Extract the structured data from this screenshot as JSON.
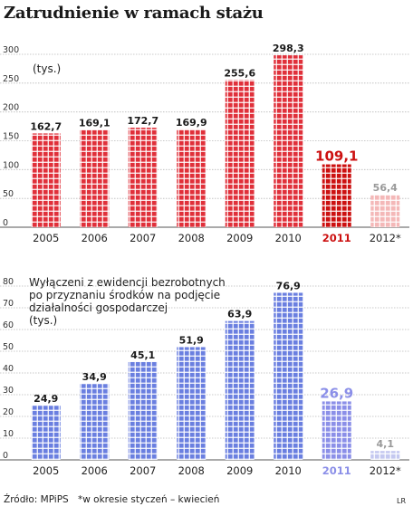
{
  "title": "Zatrudnienie w ramach stażu",
  "source": "Źródło: MPiPS",
  "footnote": "*w okresie styczeń – kwiecień",
  "credit": "LR",
  "chart_data": [
    {
      "type": "bar",
      "annotation_lines": [
        "(tys.)"
      ],
      "categories": [
        "2005",
        "2006",
        "2007",
        "2008",
        "2009",
        "2010",
        "2011",
        "2012*"
      ],
      "values": [
        162.7,
        169.1,
        172.7,
        169.9,
        255.6,
        298.3,
        109.1,
        56.4
      ],
      "labels": [
        "162,7",
        "169,1",
        "172,7",
        "169,9",
        "255,6",
        "298,3",
        "109,1",
        "56,4"
      ],
      "yticks": [
        "0",
        "50",
        "100",
        "150",
        "200",
        "250",
        "300"
      ],
      "ylim": [
        0,
        300
      ],
      "colors": {
        "default": "#e0303a",
        "highlight": "#cc1111",
        "partial": "#f4b8b8"
      },
      "highlight_index": 6,
      "partial_index": 7,
      "grid": true
    },
    {
      "type": "bar",
      "annotation_lines": [
        "Wyłączeni z ewidencji bezrobotnych",
        "po przyznaniu środków na podjęcie",
        "działalności gospodarczej",
        "(tys.)"
      ],
      "categories": [
        "2005",
        "2006",
        "2007",
        "2008",
        "2009",
        "2010",
        "2011",
        "2012*"
      ],
      "values": [
        24.9,
        34.9,
        45.1,
        51.9,
        63.9,
        76.9,
        26.9,
        4.1
      ],
      "labels": [
        "24,9",
        "34,9",
        "45,1",
        "51,9",
        "63,9",
        "76,9",
        "26,9",
        "4,1"
      ],
      "yticks": [
        "0",
        "10",
        "20",
        "30",
        "40",
        "50",
        "60",
        "70",
        "80"
      ],
      "ylim": [
        0,
        80
      ],
      "colors": {
        "default": "#6a7fe0",
        "highlight": "#8b8fe8",
        "partial": "#c4c8f0"
      },
      "highlight_index": 6,
      "partial_index": 7,
      "grid": true
    }
  ]
}
